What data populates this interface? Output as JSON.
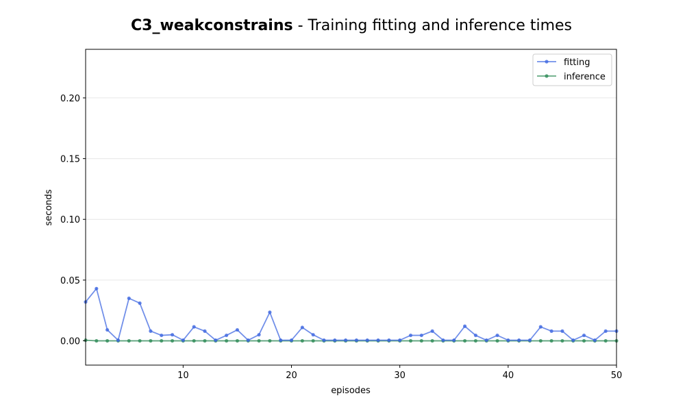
{
  "chart_data": {
    "type": "line",
    "title_bold": "C3_weakconstrains",
    "title_rest": " - Training fitting and inference times",
    "xlabel": "episodes",
    "ylabel": "seconds",
    "xlim": [
      1,
      50
    ],
    "ylim": [
      -0.02,
      0.24
    ],
    "xticks": [
      10,
      20,
      30,
      40,
      50
    ],
    "yticks": [
      0.0,
      0.05,
      0.1,
      0.15,
      0.2
    ],
    "ytick_labels": [
      "0.00",
      "0.05",
      "0.10",
      "0.15",
      "0.20"
    ],
    "grid": "horizontal",
    "legend_position": "top-right",
    "x": [
      1,
      2,
      3,
      4,
      5,
      6,
      7,
      8,
      9,
      10,
      11,
      12,
      13,
      14,
      15,
      16,
      17,
      18,
      19,
      20,
      21,
      22,
      23,
      24,
      25,
      26,
      27,
      28,
      29,
      30,
      31,
      32,
      33,
      34,
      35,
      36,
      37,
      38,
      39,
      40,
      41,
      42,
      43,
      44,
      45,
      46,
      47,
      48,
      49,
      50
    ],
    "series": [
      {
        "name": "fitting",
        "color": "#4169e1",
        "values": [
          0.032,
          0.043,
          0.009,
          0.0005,
          0.035,
          0.031,
          0.008,
          0.0045,
          0.005,
          0.0005,
          0.0115,
          0.008,
          0.0005,
          0.0045,
          0.009,
          0.0005,
          0.005,
          0.0235,
          0.0005,
          0.0005,
          0.011,
          0.005,
          0.0005,
          0.0005,
          0.0005,
          0.0005,
          0.0005,
          0.0005,
          0.0005,
          0.0005,
          0.0045,
          0.0045,
          0.008,
          0.0005,
          0.0005,
          0.012,
          0.0045,
          0.0005,
          0.0045,
          0.0005,
          0.0005,
          0.0005,
          0.0115,
          0.008,
          0.008,
          0.0005,
          0.0045,
          0.0005,
          0.008,
          0.008
        ]
      },
      {
        "name": "inference",
        "color": "#2e8b57",
        "values": [
          0.0005,
          0.0,
          0.0,
          0.0,
          0.0,
          0.0,
          0.0,
          0.0,
          0.0,
          0.0,
          0.0,
          0.0,
          0.0,
          0.0,
          0.0,
          0.0,
          0.0,
          0.0,
          0.0,
          0.0,
          0.0,
          0.0,
          0.0,
          0.0,
          0.0,
          0.0,
          0.0,
          0.0,
          0.0,
          0.0,
          0.0,
          0.0,
          0.0,
          0.0,
          0.0,
          0.0,
          0.0,
          0.0,
          0.0,
          0.0,
          0.0,
          0.0,
          0.0,
          0.0,
          0.0,
          0.0,
          0.0,
          0.0,
          0.0,
          0.0
        ]
      }
    ]
  }
}
